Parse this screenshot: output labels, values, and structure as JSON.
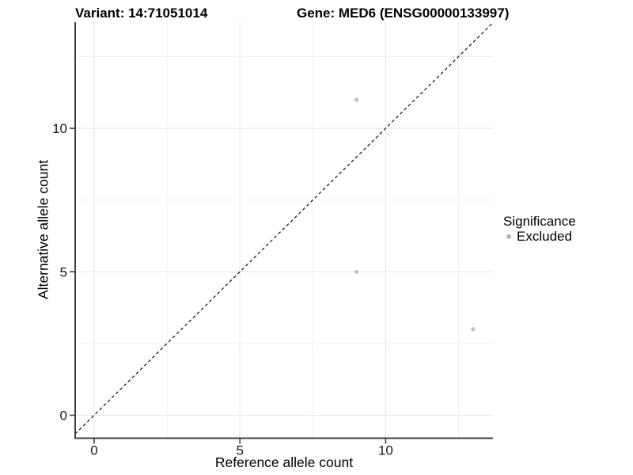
{
  "chart_data": {
    "type": "scatter",
    "title_left": "Variant: 14:71051014",
    "title_right": "Gene: MED6 (ENSG00000133997)",
    "xlabel": "Reference allele count",
    "ylabel": "Alternative allele count",
    "legend_title": "Significance",
    "legend_position": "right",
    "xlim": [
      -0.65,
      13.68
    ],
    "ylim": [
      -0.8,
      13.7
    ],
    "x_major_ticks": [
      0,
      5,
      10
    ],
    "y_major_ticks": [
      0,
      5,
      10
    ],
    "x_minor_gridlines": [
      2.5,
      7.5,
      12.5
    ],
    "y_minor_gridlines": [
      2.5,
      7.5,
      12.5
    ],
    "grid": "on",
    "series": [
      {
        "name": "Excluded",
        "color": "#c2c2c2",
        "points": [
          {
            "x": 9,
            "y": 11
          },
          {
            "x": 9,
            "y": 5
          },
          {
            "x": 13,
            "y": 3
          }
        ]
      }
    ],
    "reference_line": {
      "type": "identity y=x",
      "style": "dashed",
      "color": "#111111"
    }
  },
  "colors": {
    "background": "#ffffff",
    "grid_major": "#e4e4e4",
    "grid_minor": "#efefef",
    "axis_line": "#404040",
    "tick_mark": "#333333",
    "tick_label": "#1a1a1a",
    "point": "#c2c2c2",
    "legend_key": "#b5b5b5"
  }
}
